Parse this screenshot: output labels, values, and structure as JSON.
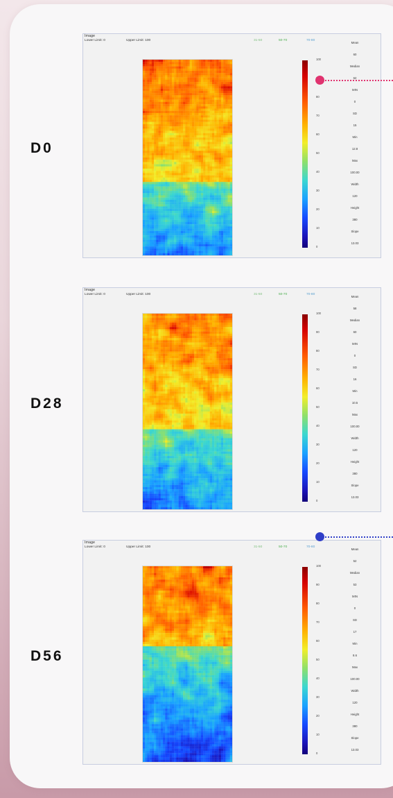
{
  "colors": {
    "red_marker": "#e0336f",
    "blue_marker": "#2f3ec8",
    "panel_border": "#c7cde0"
  },
  "rows": [
    {
      "label": "D0",
      "panel": {
        "title": "Image",
        "lower": "Lower Limit: 0",
        "upper": "Upper Limit: 100",
        "legend": [
          "31-50",
          "50-70",
          "70-80"
        ],
        "ticks": [
          "100",
          "90",
          "80",
          "70",
          "60",
          "50",
          "40",
          "30",
          "20",
          "10",
          "0"
        ],
        "stats": [
          "Mean",
          "60",
          "Median",
          "62",
          "MIN",
          "0",
          "SD",
          "15",
          "Min",
          "12.8",
          "Max",
          "100.00",
          "Width",
          "120",
          "Height",
          "380",
          "Slope",
          "13.03"
        ]
      }
    },
    {
      "label": "D28",
      "panel": {
        "title": "Image",
        "lower": "Lower Limit: 0",
        "upper": "Upper Limit: 100",
        "legend": [
          "31-50",
          "50-70",
          "70-80"
        ],
        "ticks": [
          "100",
          "90",
          "80",
          "70",
          "60",
          "50",
          "40",
          "30",
          "20",
          "10",
          "0"
        ],
        "stats": [
          "Mean",
          "58",
          "Median",
          "60",
          "MIN",
          "0",
          "SD",
          "16",
          "Min",
          "10.5",
          "Max",
          "100.00",
          "Width",
          "120",
          "Height",
          "380",
          "Slope",
          "13.03"
        ]
      }
    },
    {
      "label": "D56",
      "panel": {
        "title": "Image",
        "lower": "Lower Limit: 0",
        "upper": "Upper Limit: 100",
        "legend": [
          "31-50",
          "50-70",
          "70-80"
        ],
        "ticks": [
          "100",
          "90",
          "80",
          "70",
          "60",
          "50",
          "40",
          "30",
          "20",
          "10",
          "0"
        ],
        "stats": [
          "Mean",
          "52",
          "Median",
          "53",
          "MIN",
          "0",
          "SD",
          "17",
          "Min",
          "8.6",
          "Max",
          "100.00",
          "Width",
          "120",
          "Height",
          "380",
          "Slope",
          "13.03"
        ]
      }
    }
  ]
}
